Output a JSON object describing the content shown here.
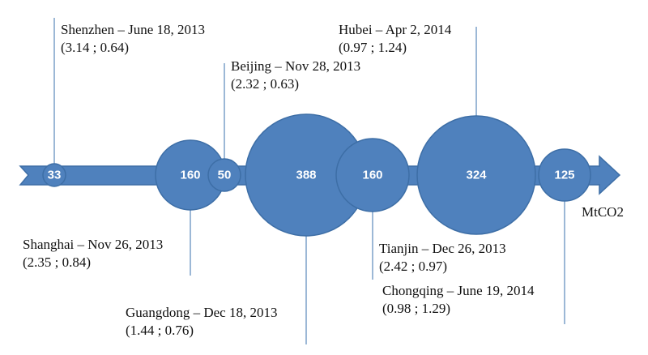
{
  "nodes": [
    {
      "value": 33,
      "label": "Shenzhen – June 18, 2013",
      "detail": "(3.14 ; 0.64)"
    },
    {
      "value": 160,
      "label": "Shanghai – Nov 26, 2013",
      "detail": "(2.35 ; 0.84)"
    },
    {
      "value": 50,
      "label": "Beijing – Nov 28, 2013",
      "detail": "(2.32 ; 0.63)"
    },
    {
      "value": 388,
      "label": "Guangdong – Dec 18, 2013",
      "detail": "(1.44 ; 0.76)"
    },
    {
      "value": 160,
      "label": "Tianjin – Dec 26, 2013",
      "detail": "(2.42 ; 0.97)"
    },
    {
      "value": 324,
      "label": "Hubei – Apr 2, 2014",
      "detail": "(0.97 ; 1.24)"
    },
    {
      "value": 125,
      "label": "Chongqing – June 19, 2014",
      "detail": "(0.98 ; 1.29)"
    }
  ],
  "unit": "MtCO2"
}
